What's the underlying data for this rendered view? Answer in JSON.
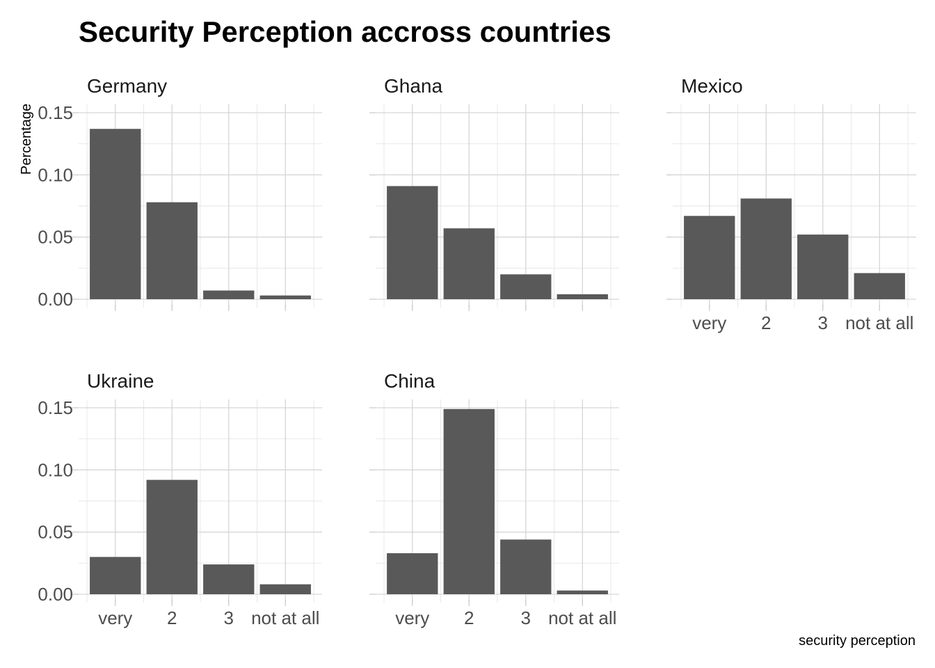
{
  "chart_data": {
    "type": "bar",
    "title": "Security Perception accross countries",
    "xlabel": "security perception",
    "ylabel": "Percentage",
    "categories": [
      "very",
      "2",
      "3",
      "not at all"
    ],
    "ylim": [
      0,
      0.15
    ],
    "yticks": [
      "0.00",
      "0.05",
      "0.10",
      "0.15"
    ],
    "ytick_values": [
      0,
      0.05,
      0.1,
      0.15
    ],
    "grid": true,
    "bar_color": "#595959",
    "facets": [
      {
        "name": "Germany",
        "values": [
          0.137,
          0.078,
          0.007,
          0.003
        ]
      },
      {
        "name": "Ghana",
        "values": [
          0.091,
          0.057,
          0.02,
          0.004
        ]
      },
      {
        "name": "Mexico",
        "values": [
          0.067,
          0.081,
          0.052,
          0.021
        ]
      },
      {
        "name": "Ukraine",
        "values": [
          0.03,
          0.092,
          0.024,
          0.008
        ]
      },
      {
        "name": "China",
        "values": [
          0.033,
          0.149,
          0.044,
          0.003
        ]
      }
    ]
  }
}
